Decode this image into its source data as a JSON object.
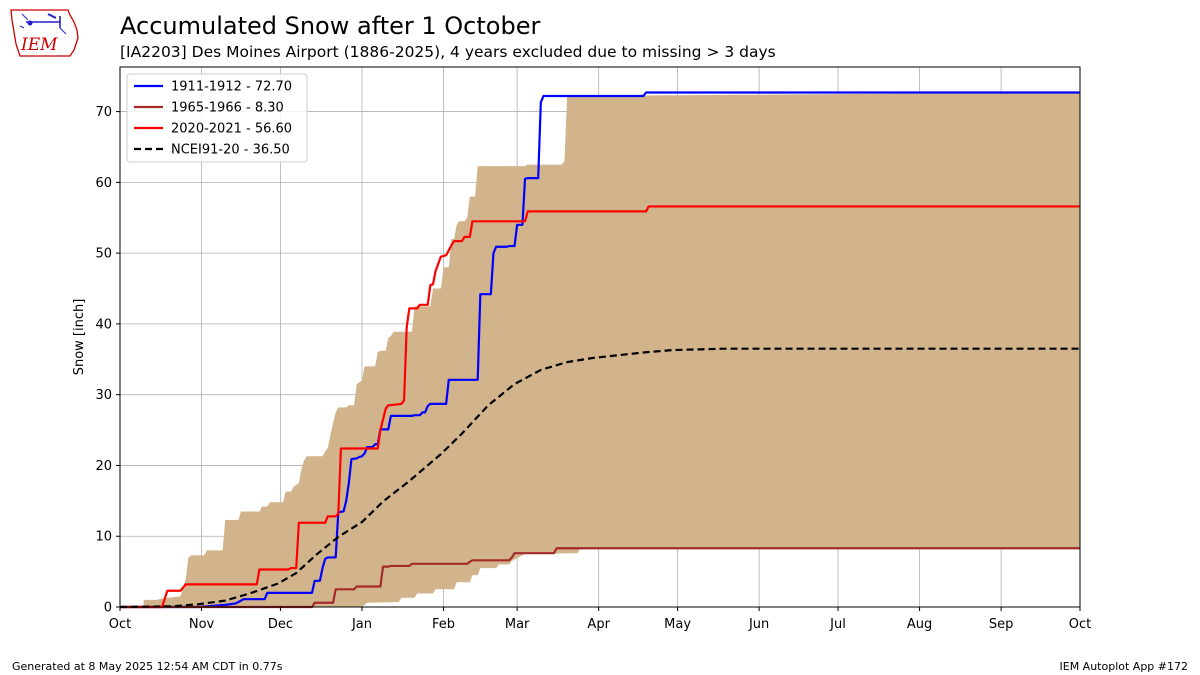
{
  "header": {
    "title": "Accumulated Snow after 1 October",
    "subtitle": "[IA2203] Des Moines Airport (1886-2025), 4 years excluded due to missing > 3 days"
  },
  "logo": {
    "text": "IEM",
    "icon": "iem-iowa-logo-icon",
    "color": "#cc0000"
  },
  "footer": {
    "left": "Generated at 8 May 2025 12:54 AM CDT in 0.77s",
    "right": "IEM Autoplot App #172"
  },
  "chart_data": {
    "type": "line",
    "title": "Accumulated Snow after 1 October",
    "ylabel": "Snow [inch]",
    "xlabel": "",
    "xlim": [
      0,
      365
    ],
    "ylim": [
      0,
      76.3
    ],
    "grid": true,
    "legend_placement": "top-left",
    "x_ticks": [
      {
        "label": "Oct",
        "day": 0
      },
      {
        "label": "Nov",
        "day": 31
      },
      {
        "label": "Dec",
        "day": 61
      },
      {
        "label": "Jan",
        "day": 92
      },
      {
        "label": "Feb",
        "day": 123
      },
      {
        "label": "Mar",
        "day": 151
      },
      {
        "label": "Apr",
        "day": 182
      },
      {
        "label": "May",
        "day": 212
      },
      {
        "label": "Jun",
        "day": 243
      },
      {
        "label": "Jul",
        "day": 273
      },
      {
        "label": "Aug",
        "day": 304
      },
      {
        "label": "Sep",
        "day": 335
      },
      {
        "label": "Oct",
        "day": 365
      }
    ],
    "y_ticks": [
      0,
      10,
      20,
      30,
      40,
      50,
      60,
      70
    ],
    "range_band": {
      "color": "#d2b48c",
      "upper": [
        [
          0,
          0
        ],
        [
          9,
          0
        ],
        [
          9,
          1
        ],
        [
          14,
          1
        ],
        [
          16,
          1.2
        ],
        [
          23,
          1.5
        ],
        [
          25,
          4
        ],
        [
          26,
          7
        ],
        [
          27,
          7.3
        ],
        [
          32,
          7.3
        ],
        [
          33,
          8
        ],
        [
          39,
          8
        ],
        [
          40,
          12.3
        ],
        [
          45,
          12.3
        ],
        [
          46,
          13.5
        ],
        [
          53,
          13.5
        ],
        [
          54,
          14.2
        ],
        [
          56,
          14.2
        ],
        [
          57,
          14.8
        ],
        [
          62,
          14.8
        ],
        [
          63,
          16.3
        ],
        [
          65,
          16.3
        ],
        [
          66,
          17
        ],
        [
          68,
          17.5
        ],
        [
          69,
          19.5
        ],
        [
          70,
          20.7
        ],
        [
          71,
          21.3
        ],
        [
          77,
          21.3
        ],
        [
          78,
          22
        ],
        [
          79,
          22.5
        ],
        [
          80,
          24.3
        ],
        [
          81,
          26
        ],
        [
          82,
          27.5
        ],
        [
          83,
          28.2
        ],
        [
          86,
          28.2
        ],
        [
          87,
          28.5
        ],
        [
          89,
          28.5
        ],
        [
          90,
          31.5
        ],
        [
          92,
          32
        ],
        [
          93,
          34
        ],
        [
          97,
          34
        ],
        [
          98,
          36
        ],
        [
          99,
          36.2
        ],
        [
          101,
          36.2
        ],
        [
          102,
          38
        ],
        [
          103,
          38.3
        ],
        [
          104,
          38.9
        ],
        [
          111,
          38.9
        ],
        [
          112,
          42.5
        ],
        [
          118,
          42.5
        ],
        [
          119,
          45
        ],
        [
          122,
          45
        ],
        [
          123,
          48
        ],
        [
          125,
          48
        ],
        [
          126,
          52
        ],
        [
          127,
          52
        ],
        [
          128,
          54
        ],
        [
          129,
          54.5
        ],
        [
          131,
          54.5
        ],
        [
          132,
          55
        ],
        [
          133,
          58
        ],
        [
          135,
          58
        ],
        [
          136,
          62.3
        ],
        [
          154,
          62.3
        ],
        [
          155,
          62.5
        ],
        [
          168,
          62.5
        ],
        [
          169,
          63
        ],
        [
          170,
          72.2
        ],
        [
          365,
          72.7
        ]
      ],
      "lower": [
        [
          0,
          0
        ],
        [
          92,
          0
        ],
        [
          94,
          0.6
        ],
        [
          106,
          0.7
        ],
        [
          107,
          1.3
        ],
        [
          112,
          1.3
        ],
        [
          113,
          1.9
        ],
        [
          119,
          1.9
        ],
        [
          120,
          2.5
        ],
        [
          127,
          2.5
        ],
        [
          128,
          3.5
        ],
        [
          133,
          3.5
        ],
        [
          134,
          4.5
        ],
        [
          136,
          4.5
        ],
        [
          137,
          5.5
        ],
        [
          143,
          5.5
        ],
        [
          144,
          6
        ],
        [
          148,
          6
        ],
        [
          149,
          6.5
        ],
        [
          154,
          7.5
        ],
        [
          174,
          7.6
        ],
        [
          175,
          8.3
        ],
        [
          365,
          8.3
        ]
      ]
    },
    "series": [
      {
        "name": "1911-1912 - 72.70",
        "color": "#0000ff",
        "style": "solid",
        "points": [
          [
            0,
            0
          ],
          [
            30,
            0
          ],
          [
            40,
            0.3
          ],
          [
            44,
            0.5
          ],
          [
            46,
            0.9
          ],
          [
            47,
            1.1
          ],
          [
            55,
            1.1
          ],
          [
            56,
            2
          ],
          [
            73,
            2
          ],
          [
            74,
            3.7
          ],
          [
            76,
            3.7
          ],
          [
            77,
            5.5
          ],
          [
            78,
            6.8
          ],
          [
            79,
            7
          ],
          [
            82,
            7
          ],
          [
            83,
            13.4
          ],
          [
            85,
            13.5
          ],
          [
            86,
            15
          ],
          [
            87,
            17.5
          ],
          [
            88,
            20.9
          ],
          [
            90,
            21
          ],
          [
            91,
            21.2
          ],
          [
            92,
            21.3
          ],
          [
            93,
            21.7
          ],
          [
            94,
            22.6
          ],
          [
            96,
            22.6
          ],
          [
            97,
            23
          ],
          [
            98,
            23
          ],
          [
            99,
            25.1
          ],
          [
            102,
            25.1
          ],
          [
            103,
            27
          ],
          [
            111,
            27
          ],
          [
            112,
            27.1
          ],
          [
            114,
            27.1
          ],
          [
            115,
            27.5
          ],
          [
            116,
            27.5
          ],
          [
            117,
            28.4
          ],
          [
            118,
            28.7
          ],
          [
            124,
            28.7
          ],
          [
            125,
            32.1
          ],
          [
            136,
            32.1
          ],
          [
            137,
            44.2
          ],
          [
            141,
            44.2
          ],
          [
            142,
            50
          ],
          [
            143,
            50.9
          ],
          [
            147,
            50.9
          ],
          [
            148,
            51
          ],
          [
            150,
            51
          ],
          [
            151,
            54
          ],
          [
            153,
            54
          ],
          [
            154,
            60.5
          ],
          [
            155,
            60.6
          ],
          [
            159,
            60.6
          ],
          [
            160,
            71.3
          ],
          [
            161,
            72.2
          ],
          [
            179,
            72.2
          ],
          [
            199,
            72.2
          ],
          [
            200,
            72.7
          ],
          [
            365,
            72.7
          ]
        ]
      },
      {
        "name": "1965-1966 - 8.30",
        "color": "#a52a2a",
        "style": "solid",
        "points": [
          [
            0,
            0
          ],
          [
            73,
            0
          ],
          [
            74,
            0.6
          ],
          [
            81,
            0.6
          ],
          [
            82,
            2.5
          ],
          [
            89,
            2.5
          ],
          [
            90,
            2.9
          ],
          [
            99,
            2.9
          ],
          [
            100,
            5.7
          ],
          [
            102,
            5.7
          ],
          [
            103,
            5.8
          ],
          [
            110,
            5.8
          ],
          [
            111,
            6.1
          ],
          [
            132,
            6.1
          ],
          [
            133,
            6.4
          ],
          [
            134,
            6.6
          ],
          [
            148,
            6.6
          ],
          [
            149,
            7
          ],
          [
            150,
            7.6
          ],
          [
            165,
            7.6
          ],
          [
            166,
            8.3
          ],
          [
            365,
            8.3
          ]
        ]
      },
      {
        "name": "2020-2021 - 56.60",
        "color": "#ff0000",
        "style": "solid",
        "points": [
          [
            0,
            0
          ],
          [
            16,
            0
          ],
          [
            18,
            2.3
          ],
          [
            23,
            2.3
          ],
          [
            25,
            3.2
          ],
          [
            52,
            3.2
          ],
          [
            53,
            5.3
          ],
          [
            64,
            5.3
          ],
          [
            65,
            5.5
          ],
          [
            67,
            5.5
          ],
          [
            68,
            11.9
          ],
          [
            78,
            11.9
          ],
          [
            79,
            12.8
          ],
          [
            82,
            12.8
          ],
          [
            83,
            13.2
          ],
          [
            84,
            22.4
          ],
          [
            98,
            22.4
          ],
          [
            99,
            25
          ],
          [
            101,
            28
          ],
          [
            102,
            28.5
          ],
          [
            105,
            28.6
          ],
          [
            107,
            28.7
          ],
          [
            108,
            29.2
          ],
          [
            109,
            39.5
          ],
          [
            110,
            42.2
          ],
          [
            113,
            42.2
          ],
          [
            114,
            42.7
          ],
          [
            117,
            42.7
          ],
          [
            118,
            45.5
          ],
          [
            119,
            45.6
          ],
          [
            120,
            47.5
          ],
          [
            121,
            48.5
          ],
          [
            122,
            49.5
          ],
          [
            124,
            49.7
          ],
          [
            126,
            51.1
          ],
          [
            127,
            51.7
          ],
          [
            130,
            51.7
          ],
          [
            131,
            52.3
          ],
          [
            133,
            52.3
          ],
          [
            134,
            54.5
          ],
          [
            154,
            54.5
          ],
          [
            155,
            55.9
          ],
          [
            200,
            55.9
          ],
          [
            201,
            56.6
          ],
          [
            365,
            56.6
          ]
        ]
      },
      {
        "name": "NCEI91-20 - 36.50",
        "color": "#000000",
        "style": "dashed",
        "points": [
          [
            0,
            0
          ],
          [
            20,
            0.1
          ],
          [
            30,
            0.4
          ],
          [
            40,
            0.9
          ],
          [
            50,
            2
          ],
          [
            60,
            3.3
          ],
          [
            67,
            4.8
          ],
          [
            75,
            7.5
          ],
          [
            83,
            9.9
          ],
          [
            92,
            12
          ],
          [
            100,
            14.9
          ],
          [
            110,
            17.8
          ],
          [
            122,
            21.6
          ],
          [
            130,
            24.5
          ],
          [
            140,
            28.5
          ],
          [
            150,
            31.5
          ],
          [
            160,
            33.5
          ],
          [
            170,
            34.6
          ],
          [
            180,
            35.2
          ],
          [
            190,
            35.6
          ],
          [
            200,
            36
          ],
          [
            210,
            36.3
          ],
          [
            220,
            36.4
          ],
          [
            230,
            36.5
          ],
          [
            365,
            36.5
          ]
        ]
      }
    ]
  }
}
